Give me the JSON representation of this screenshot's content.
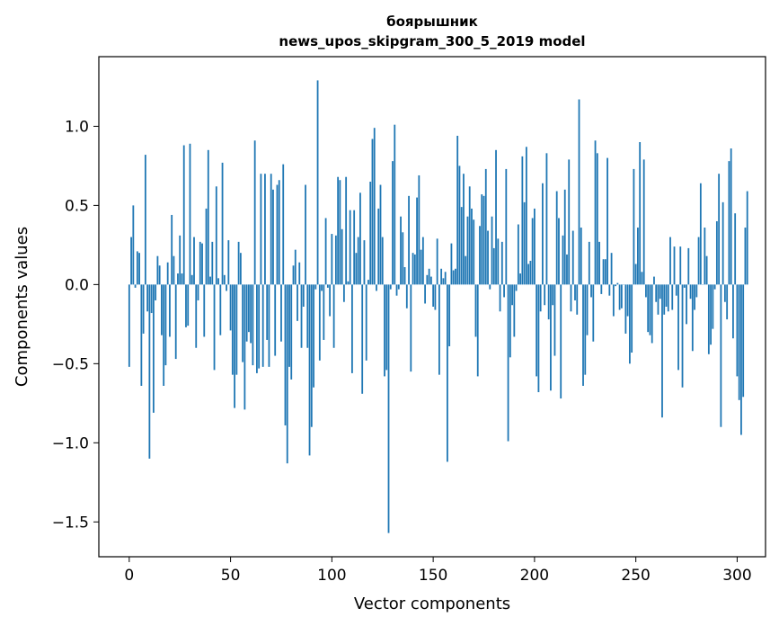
{
  "chart_data": {
    "type": "bar",
    "title": "боярышник",
    "subtitle": "news_upos_skipgram_300_5_2019 model",
    "xlabel": "Vector components",
    "ylabel": "Components values",
    "xlim": [
      -15,
      314
    ],
    "ylim": [
      -1.72,
      1.44
    ],
    "xticks": [
      0,
      50,
      100,
      150,
      200,
      250,
      300
    ],
    "yticks": [
      -1.5,
      -1.0,
      -0.5,
      0.0,
      0.5,
      1.0
    ],
    "ytick_labels": [
      "−1.5",
      "−1.0",
      "−0.5",
      "0.0",
      "0.5",
      "1.0"
    ],
    "grid": false,
    "color": "#1f77b4",
    "x_start": 0,
    "values": [
      -0.52,
      0.3,
      0.5,
      -0.02,
      0.21,
      0.2,
      -0.64,
      -0.31,
      0.82,
      -0.17,
      -1.1,
      -0.18,
      -0.81,
      -0.1,
      0.18,
      0.12,
      -0.32,
      -0.64,
      -0.51,
      0.14,
      -0.33,
      0.44,
      0.18,
      -0.47,
      0.07,
      0.31,
      0.07,
      0.88,
      -0.27,
      -0.26,
      0.89,
      0.06,
      0.3,
      -0.4,
      -0.1,
      0.27,
      0.26,
      -0.33,
      0.48,
      0.85,
      0.05,
      0.27,
      -0.54,
      0.62,
      0.04,
      -0.32,
      0.77,
      0.06,
      -0.04,
      0.28,
      -0.29,
      -0.57,
      -0.78,
      -0.57,
      0.27,
      0.2,
      -0.49,
      -0.79,
      -0.36,
      -0.3,
      -0.37,
      -0.51,
      0.91,
      -0.56,
      -0.53,
      0.7,
      -0.52,
      0.7,
      -0.35,
      -0.52,
      0.7,
      0.6,
      -0.45,
      0.63,
      0.66,
      -0.36,
      0.76,
      -0.89,
      -1.13,
      -0.52,
      -0.6,
      0.12,
      0.22,
      -0.23,
      0.14,
      -0.4,
      -0.14,
      0.63,
      -0.4,
      -1.08,
      -0.9,
      -0.65,
      -0.03,
      1.29,
      -0.48,
      -0.04,
      -0.35,
      0.42,
      -0.02,
      -0.2,
      0.32,
      -0.4,
      0.31,
      0.68,
      0.66,
      0.35,
      -0.11,
      0.68,
      0.02,
      0.47,
      -0.56,
      0.47,
      0.2,
      0.3,
      0.58,
      -0.69,
      0.28,
      -0.48,
      0.03,
      0.65,
      0.92,
      0.99,
      -0.04,
      0.48,
      0.63,
      0.3,
      -0.58,
      -0.54,
      -1.57,
      -0.03,
      0.78,
      1.01,
      -0.07,
      -0.03,
      0.43,
      0.33,
      0.11,
      -0.15,
      0.56,
      -0.55,
      0.2,
      0.19,
      0.55,
      0.69,
      0.22,
      0.3,
      -0.12,
      0.06,
      0.1,
      0.05,
      -0.14,
      -0.16,
      0.29,
      -0.57,
      0.1,
      0.04,
      0.08,
      -1.12,
      -0.39,
      0.26,
      0.09,
      0.1,
      0.94,
      0.75,
      0.49,
      0.7,
      0.18,
      0.43,
      0.62,
      0.48,
      0.41,
      -0.33,
      -0.58,
      0.37,
      0.57,
      0.56,
      0.73,
      0.34,
      -0.03,
      0.43,
      0.23,
      0.85,
      0.29,
      -0.17,
      0.27,
      -0.08,
      0.73,
      -0.99,
      -0.46,
      -0.13,
      -0.33,
      -0.04,
      0.38,
      0.07,
      0.81,
      0.52,
      0.87,
      0.13,
      0.15,
      0.42,
      0.48,
      -0.58,
      -0.68,
      -0.17,
      0.64,
      -0.13,
      0.83,
      -0.22,
      -0.67,
      -0.13,
      -0.45,
      0.59,
      0.42,
      -0.72,
      0.31,
      0.6,
      0.19,
      0.79,
      -0.17,
      0.34,
      -0.1,
      -0.19,
      1.17,
      0.36,
      -0.64,
      -0.57,
      -0.32,
      0.27,
      -0.08,
      -0.36,
      0.91,
      0.83,
      0.27,
      -0.06,
      0.16,
      0.16,
      0.8,
      -0.07,
      0.2,
      -0.2,
      -0.01,
      0.01,
      -0.16,
      -0.15,
      0.0,
      -0.31,
      -0.2,
      -0.5,
      -0.43,
      0.73,
      0.13,
      0.36,
      0.9,
      0.08,
      0.79,
      -0.08,
      -0.3,
      -0.32,
      -0.37,
      0.05,
      -0.11,
      -0.19,
      -0.09,
      -0.84,
      -0.19,
      -0.14,
      -0.17,
      0.3,
      -0.16,
      0.24,
      -0.07,
      -0.54,
      0.24,
      -0.65,
      -0.02,
      -0.25,
      0.23,
      -0.09,
      -0.42,
      -0.16,
      -0.08,
      0.3,
      0.64,
      0.0,
      0.36,
      0.18,
      -0.44,
      -0.38,
      -0.28,
      -0.03,
      0.4,
      0.7,
      -0.9,
      0.52,
      -0.11,
      -0.22,
      0.78,
      0.86,
      -0.34,
      0.45,
      -0.58,
      -0.73,
      -0.95,
      -0.71,
      0.36,
      0.59
    ]
  }
}
